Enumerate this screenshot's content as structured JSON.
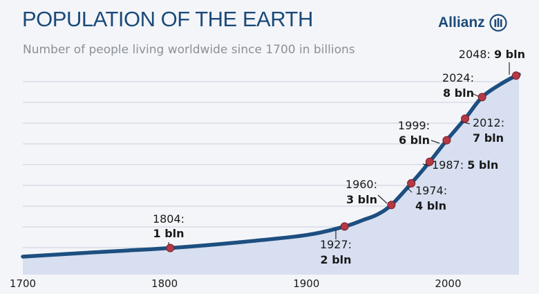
{
  "header": {
    "title": "POPULATION OF THE EARTH",
    "subtitle": "Number of people living worldwide since 1700 in billions",
    "brand": "Allianz"
  },
  "colors": {
    "line": "#1d4f80",
    "fill": "#d7dff0",
    "marker": "#b33a45",
    "grid": "#ffffff",
    "title": "#1b4a7a"
  },
  "chart_data": {
    "type": "area",
    "title": "POPULATION OF THE EARTH",
    "subtitle": "Number of people living worldwide since 1700 in billions",
    "xlabel": "",
    "ylabel": "",
    "xlim": [
      1700,
      2050
    ],
    "ylim": [
      0.6,
      9.2
    ],
    "grid": true,
    "x_ticks": [
      1700,
      1800,
      1900,
      2000
    ],
    "curve": [
      {
        "x": 1700,
        "y": 0.6
      },
      {
        "x": 1750,
        "y": 0.8
      },
      {
        "x": 1804,
        "y": 1.0
      },
      {
        "x": 1850,
        "y": 1.25
      },
      {
        "x": 1900,
        "y": 1.6
      },
      {
        "x": 1927,
        "y": 2.0
      },
      {
        "x": 1940,
        "y": 2.3
      },
      {
        "x": 1950,
        "y": 2.55
      },
      {
        "x": 1960,
        "y": 3.0
      },
      {
        "x": 1974,
        "y": 4.0
      },
      {
        "x": 1987,
        "y": 5.0
      },
      {
        "x": 1999,
        "y": 6.0
      },
      {
        "x": 2012,
        "y": 7.0
      },
      {
        "x": 2024,
        "y": 8.0
      },
      {
        "x": 2037,
        "y": 8.6
      },
      {
        "x": 2048,
        "y": 9.0
      },
      {
        "x": 2050,
        "y": 9.05
      }
    ],
    "milestones": [
      {
        "x": 1804,
        "y": 1,
        "line1": "1804:",
        "line2": "1 bln"
      },
      {
        "x": 1927,
        "y": 2,
        "line1": "1927:",
        "line2": "2 bln"
      },
      {
        "x": 1960,
        "y": 3,
        "line1": "1960:",
        "line2": "3 bln"
      },
      {
        "x": 1974,
        "y": 4,
        "line1": "1974:",
        "line2": "4 bln"
      },
      {
        "x": 1987,
        "y": 5,
        "line1": "1987:",
        "line2": "5 bln"
      },
      {
        "x": 1999,
        "y": 6,
        "line1": "1999:",
        "line2": "6 bln"
      },
      {
        "x": 2012,
        "y": 7,
        "line1": "2012:",
        "line2": "7 bln"
      },
      {
        "x": 2024,
        "y": 8,
        "line1": "2024:",
        "line2": "8 bln"
      },
      {
        "x": 2048,
        "y": 9,
        "line1": "2048:",
        "line2": "9 bln"
      }
    ]
  }
}
